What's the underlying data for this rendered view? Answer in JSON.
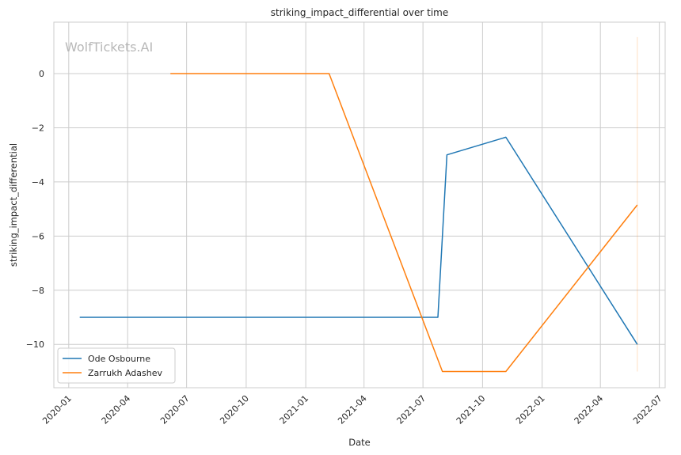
{
  "watermark": "WolfTickets.AI",
  "chart_data": {
    "type": "line",
    "title": "striking_impact_differential over time",
    "xlabel": "Date",
    "ylabel": "striking_impact_differential",
    "x_is_date": true,
    "xlim": [
      "2019-12-09",
      "2022-07-10"
    ],
    "ylim": [
      -11.6,
      1.9
    ],
    "x_ticks": [
      "2020-01",
      "2020-04",
      "2020-07",
      "2020-10",
      "2021-01",
      "2021-04",
      "2021-07",
      "2021-10",
      "2022-01",
      "2022-04",
      "2022-07"
    ],
    "y_ticks": [
      0,
      -2,
      -4,
      -6,
      -8,
      -10
    ],
    "y_tick_labels": [
      "0",
      "−2",
      "−4",
      "−6",
      "−8",
      "−10"
    ],
    "grid": true,
    "legend_position": "lower-left",
    "series": [
      {
        "name": "Ode Osbourne",
        "color": "#1f77b4",
        "points": [
          {
            "x": "2020-01-18",
            "y": -9
          },
          {
            "x": "2021-07-24",
            "y": -9
          },
          {
            "x": "2021-08-07",
            "y": -3
          },
          {
            "x": "2021-11-06",
            "y": -2.35
          },
          {
            "x": "2022-05-28",
            "y": -10
          }
        ]
      },
      {
        "name": "Zarrukh Adashev",
        "color": "#ff7f0e",
        "points": [
          {
            "x": "2020-06-06",
            "y": 0
          },
          {
            "x": "2021-02-06",
            "y": 0
          },
          {
            "x": "2021-07-31",
            "y": -11
          },
          {
            "x": "2021-11-06",
            "y": -11
          },
          {
            "x": "2022-05-28",
            "y": -4.85
          }
        ]
      }
    ],
    "annotation_line": {
      "x": "2022-05-28",
      "y_from": -11,
      "y_to": 1.35,
      "color": "#ff7f0e"
    }
  }
}
